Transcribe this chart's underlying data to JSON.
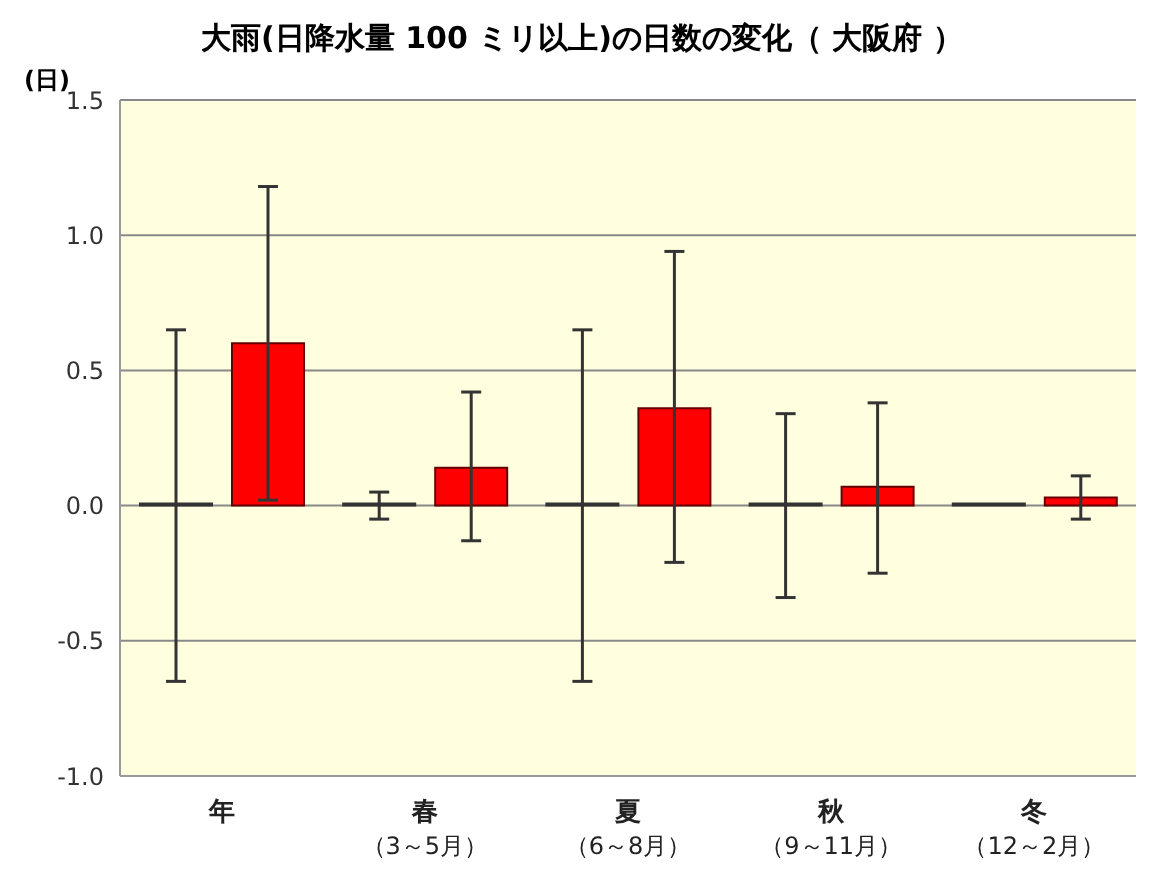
{
  "chart_data": {
    "type": "bar",
    "title": "大雨(日降水量 100 ミリ以上)の日数の変化（ 大阪府 ）",
    "ylabel": "(日)",
    "categories": [
      "年",
      "春（3～5月）",
      "夏（6～8月）",
      "秋（9～11月）",
      "冬（12～2月）"
    ],
    "series": [
      {
        "color": "#333333",
        "values": [
          0,
          0,
          0,
          0,
          0
        ],
        "errors": [
          [
            -0.65,
            0.65
          ],
          [
            -0.05,
            0.05
          ],
          [
            -0.65,
            0.65
          ],
          [
            -0.34,
            0.34
          ],
          null
        ]
      },
      {
        "color": "#ff0000",
        "values": [
          0.6,
          0.14,
          0.36,
          0.07,
          0.03
        ],
        "errors": [
          [
            0.02,
            1.18
          ],
          [
            -0.13,
            0.42
          ],
          [
            -0.21,
            0.94
          ],
          [
            -0.25,
            0.38
          ],
          [
            -0.05,
            0.11
          ]
        ]
      }
    ],
    "ylim": [
      -1,
      1.5
    ],
    "yticks": [
      {
        "value": -1,
        "label": "-1.0"
      },
      {
        "value": -0.5,
        "label": "-0.5"
      },
      {
        "value": 0,
        "label": "0.0"
      },
      {
        "value": 0.5,
        "label": "0.5"
      },
      {
        "value": 1,
        "label": "1.0"
      },
      {
        "value": 1.5,
        "label": "1.5"
      }
    ],
    "grid": "y",
    "legend": false
  }
}
